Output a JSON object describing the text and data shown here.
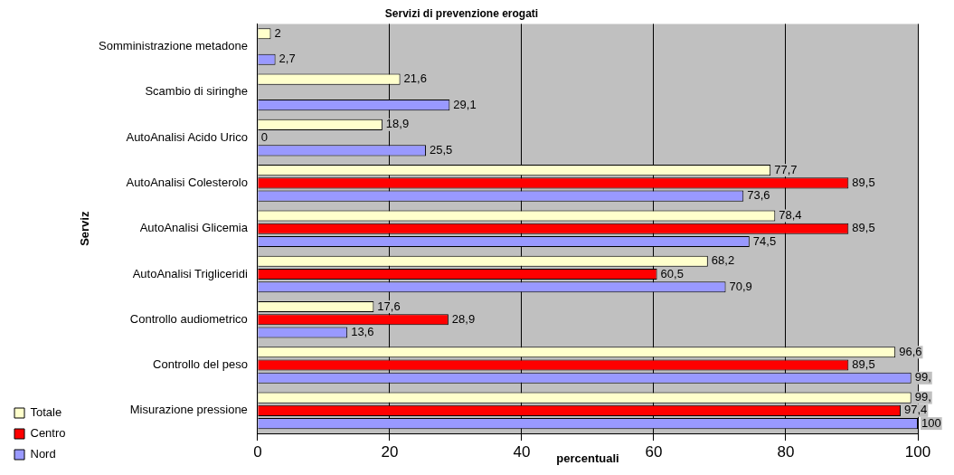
{
  "chart_data": {
    "type": "bar",
    "orientation": "horizontal",
    "title": "Servizi di prevenzione erogati",
    "xlabel": "percentuali",
    "ylabel": "Serviz",
    "categories": [
      "Somministrazione metadone",
      "Scambio di siringhe",
      "AutoAnalisi Acido Urico",
      "AutoAnalisi Colesterolo",
      "AutoAnalisi Glicemia",
      "AutoAnalisi Trigliceridi",
      "Controllo audiometrico",
      "Controllo del peso",
      "Misurazione pressione"
    ],
    "series": [
      {
        "name": "Totale",
        "color": "#ffffcc",
        "values": [
          2,
          21.6,
          18.9,
          77.7,
          78.4,
          68.2,
          17.6,
          96.6,
          99
        ],
        "value_labels": [
          "2",
          "21,6",
          "18,9",
          "77,7",
          "78,4",
          "68,2",
          "17,6",
          "96,6",
          "99,"
        ]
      },
      {
        "name": "Centro",
        "color": "#ff0000",
        "values": [
          null,
          null,
          0,
          89.5,
          89.5,
          60.5,
          28.9,
          89.5,
          97.4
        ],
        "value_labels": [
          null,
          null,
          "0",
          "89,5",
          "89,5",
          "60,5",
          "28,9",
          "89,5",
          "97,4"
        ]
      },
      {
        "name": "Nord",
        "color": "#9999ff",
        "values": [
          2.7,
          29.1,
          25.5,
          73.6,
          74.5,
          70.9,
          13.6,
          99,
          100
        ],
        "value_labels": [
          "2,7",
          "29,1",
          "25,5",
          "73,6",
          "74,5",
          "70,9",
          "13,6",
          "99,",
          "100"
        ]
      }
    ],
    "xlim": [
      0,
      100
    ],
    "xticks": [
      0,
      20,
      40,
      60,
      80,
      100
    ],
    "grid": "x",
    "legend": "bottom left"
  }
}
